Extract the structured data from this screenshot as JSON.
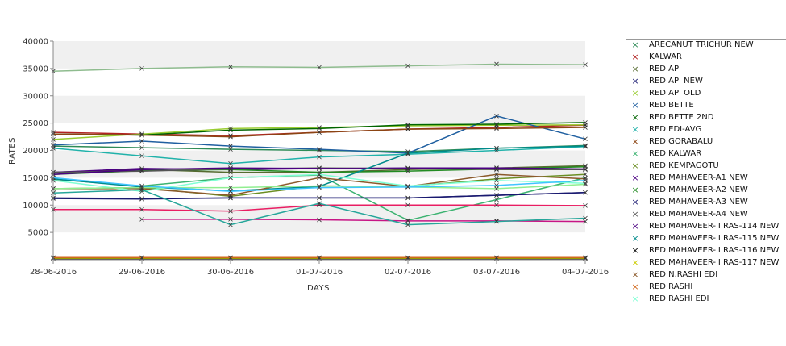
{
  "chart_data": {
    "type": "line",
    "xlabel": "DAYS",
    "ylabel": "RATES",
    "ylim": [
      0,
      40000
    ],
    "yticks": [
      5000,
      10000,
      15000,
      20000,
      25000,
      30000,
      35000,
      40000
    ],
    "ytick_labels": [
      "5000",
      "10000",
      "15000",
      "20000",
      "25000",
      "30000",
      "35000",
      "40000"
    ],
    "categories": [
      "28-06-2016",
      "29-06-2016",
      "30-06-2016",
      "01-07-2016",
      "02-07-2016",
      "03-07-2016",
      "04-07-2016"
    ],
    "grid": "alternating horizontal bands",
    "legend_position": "right",
    "series": [
      {
        "name": "ARECANUT TRICHUR NEW",
        "color": "#2e8b57",
        "values": [
          20800,
          20500,
          20200,
          20000,
          19800,
          20400,
          20900
        ]
      },
      {
        "name": "KALWAR",
        "color": "#b22222",
        "values": [
          23300,
          23000,
          22700,
          23300,
          23900,
          24200,
          24600
        ]
      },
      {
        "name": "RED API",
        "color": "#556b2f",
        "values": [
          16000,
          16500,
          16000,
          16000,
          16500,
          16800,
          17200
        ]
      },
      {
        "name": "RED API NEW",
        "color": "#191970",
        "values": [
          11300,
          11200,
          11300,
          11300,
          11300,
          11800,
          12300
        ]
      },
      {
        "name": "RED API OLD",
        "color": "#9acd32",
        "values": [
          22000,
          23000,
          24000,
          24200,
          24500,
          24600,
          24700
        ]
      },
      {
        "name": "RED BETTE",
        "color": "#1f5fa0",
        "values": [
          21000,
          21700,
          20800,
          20200,
          19500,
          26300,
          22100
        ]
      },
      {
        "name": "RED BETTE 2ND",
        "color": "#006400",
        "values": [
          23000,
          22800,
          23700,
          24000,
          24700,
          24800,
          25100
        ]
      },
      {
        "name": "RED EDI-AVG",
        "color": "#20b2aa",
        "values": [
          20400,
          19000,
          17600,
          18800,
          19300,
          20000,
          20700
        ]
      },
      {
        "name": "RED GORABALU",
        "color": "#8b4513",
        "values": [
          23000,
          22800,
          22500,
          23300,
          23900,
          24000,
          24200
        ]
      },
      {
        "name": "RED KALWAR",
        "color": "#3cb371",
        "values": [
          14700,
          13500,
          15000,
          15500,
          7200,
          11000,
          15000
        ]
      },
      {
        "name": "RED KEMPAGOTU",
        "color": "#6b8e23",
        "values": [
          13000,
          13200,
          11600,
          13500,
          13400,
          14800,
          15600
        ]
      },
      {
        "name": "RED MAHAVEER-A1 NEW",
        "color": "#4b0082",
        "values": [
          16000,
          16700,
          16500,
          16700,
          16800,
          16800,
          16500
        ]
      },
      {
        "name": "RED MAHAVEER-A2 NEW",
        "color": "#228b22",
        "values": [
          15600,
          16300,
          16500,
          16000,
          16200,
          16600,
          17000
        ]
      },
      {
        "name": "RED MAHAVEER-A3 NEW",
        "color": "#191970",
        "values": [
          11200,
          11100,
          11300,
          11300,
          11300,
          11800,
          12300
        ]
      },
      {
        "name": "RED MAHAVEER-A4 NEW",
        "color": "#555555",
        "values": [
          16000,
          16200,
          16600,
          16800,
          16700,
          16500,
          16500
        ]
      },
      {
        "name": "RED MAHAVEER-II RAS-114 NEW",
        "color": "#4b0082",
        "values": [
          15600,
          16500,
          16800,
          16700,
          16700,
          16800,
          16600
        ]
      },
      {
        "name": "RED MAHAVEER-II RAS-115 NEW",
        "color": "#008b8b",
        "values": [
          14800,
          13300,
          12600,
          13400,
          19500,
          20400,
          20800
        ]
      },
      {
        "name": "RED MAHAVEER-II RAS-116 NEW",
        "color": "#000000",
        "values": [
          200,
          200,
          200,
          200,
          200,
          200,
          200
        ]
      },
      {
        "name": "RED MAHAVEER-II RAS-117 NEW",
        "color": "#cccc00",
        "values": [
          300,
          300,
          300,
          300,
          300,
          300,
          300
        ]
      },
      {
        "name": "RED N.RASHI EDI",
        "color": "#8b5a2b",
        "values": [
          13000,
          13000,
          11800,
          15000,
          13400,
          15600,
          14800
        ]
      },
      {
        "name": "RED RASHI",
        "color": "#d2691e",
        "values": [
          400,
          400,
          400,
          400,
          400,
          400,
          400
        ]
      },
      {
        "name": "RED RASHI EDI",
        "color": "#7fffd4",
        "values": [
          14500,
          12500,
          15000,
          15600,
          13500,
          14500,
          14000
        ]
      },
      {
        "name": "",
        "color": "#8fbc8f",
        "values": [
          34500,
          35000,
          35300,
          35200,
          35500,
          35800,
          35700
        ]
      },
      {
        "name": "",
        "color": "#e91e63",
        "values": [
          9200,
          9200,
          8900,
          10000,
          10000,
          10000,
          9900
        ]
      },
      {
        "name": "",
        "color": "#c71585",
        "values": [
          null,
          7400,
          7400,
          7300,
          7100,
          7100,
          7000
        ]
      },
      {
        "name": "",
        "color": "#26a69a",
        "values": [
          12200,
          12800,
          6400,
          10300,
          6400,
          7000,
          7600
        ]
      },
      {
        "name": "",
        "color": "#90ee90",
        "values": [
          13000,
          13200,
          13200,
          13500,
          13300,
          13000,
          13800
        ]
      },
      {
        "name": "",
        "color": "#40c4ff",
        "values": [
          15000,
          13500,
          12500,
          13200,
          13300,
          13600,
          14500
        ]
      }
    ]
  },
  "legend": {
    "items": [
      {
        "label": "ARECANUT TRICHUR NEW",
        "color": "#2e8b57"
      },
      {
        "label": "KALWAR",
        "color": "#b22222"
      },
      {
        "label": "RED API",
        "color": "#556b2f"
      },
      {
        "label": "RED API NEW",
        "color": "#191970"
      },
      {
        "label": "RED API OLD",
        "color": "#9acd32"
      },
      {
        "label": "RED BETTE",
        "color": "#1f5fa0"
      },
      {
        "label": "RED BETTE 2ND",
        "color": "#006400"
      },
      {
        "label": "RED EDI-AVG",
        "color": "#20b2aa"
      },
      {
        "label": "RED GORABALU",
        "color": "#8b4513"
      },
      {
        "label": "RED KALWAR",
        "color": "#3cb371"
      },
      {
        "label": "RED KEMPAGOTU",
        "color": "#6b8e23"
      },
      {
        "label": "RED MAHAVEER-A1 NEW",
        "color": "#4b0082"
      },
      {
        "label": "RED MAHAVEER-A2 NEW",
        "color": "#228b22"
      },
      {
        "label": "RED MAHAVEER-A3 NEW",
        "color": "#191970"
      },
      {
        "label": "RED MAHAVEER-A4 NEW",
        "color": "#555555"
      },
      {
        "label": "RED MAHAVEER-II RAS-114 NEW",
        "color": "#4b0082"
      },
      {
        "label": "RED MAHAVEER-II RAS-115 NEW",
        "color": "#008b8b"
      },
      {
        "label": "RED MAHAVEER-II RAS-116 NEW",
        "color": "#000000"
      },
      {
        "label": "RED MAHAVEER-II RAS-117 NEW",
        "color": "#cccc00"
      },
      {
        "label": "RED N.RASHI EDI",
        "color": "#8b5a2b"
      },
      {
        "label": "RED RASHI",
        "color": "#d2691e"
      },
      {
        "label": "RED RASHI EDI",
        "color": "#7fffd4"
      }
    ]
  }
}
